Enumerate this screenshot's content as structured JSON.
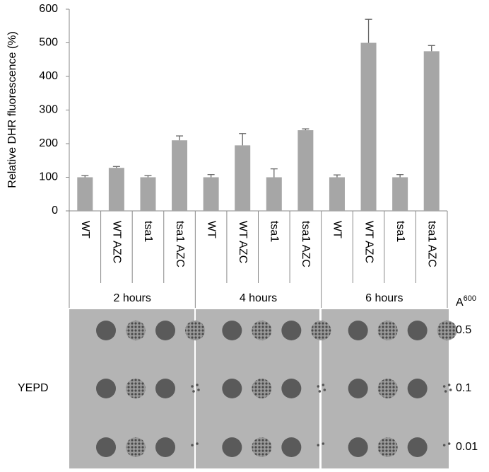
{
  "chart_data": {
    "type": "bar",
    "ylabel": "Relative DHR fluorescence (%)",
    "categories": [
      "WT",
      "WT AZC",
      "tsa1",
      "tsa1 AZC",
      "WT",
      "WT AZC",
      "tsa1",
      "tsa1 AZC",
      "WT",
      "WT AZC",
      "tsa1",
      "tsa1 AZC"
    ],
    "values": [
      100,
      128,
      100,
      210,
      100,
      195,
      100,
      240,
      100,
      500,
      100,
      475
    ],
    "errors": [
      5,
      4,
      5,
      13,
      8,
      35,
      25,
      4,
      7,
      70,
      8,
      17
    ],
    "color": "#a6a6a6",
    "ylim": [
      0,
      600
    ],
    "yticks": [
      0,
      100,
      200,
      300,
      400,
      500,
      600
    ],
    "groups": [
      "2 hours",
      "4 hours",
      "6 hours"
    ]
  },
  "plate": {
    "medium": "YEPD",
    "absorbance_label": "A",
    "absorbance_sup": "600",
    "dilutions": [
      "0.5",
      "0.1",
      "0.01"
    ]
  }
}
